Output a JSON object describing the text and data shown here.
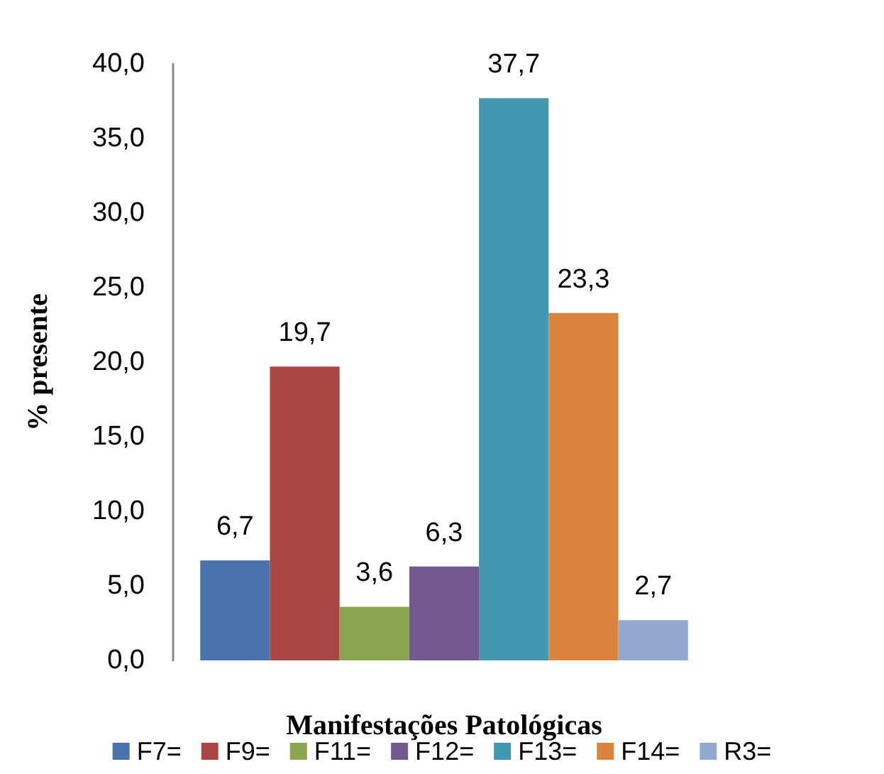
{
  "chart_data": {
    "type": "bar",
    "xlabel": "Manifestações Patológicas",
    "ylabel": "% presente",
    "categories": [
      null
    ],
    "series": [
      {
        "name": "F7=",
        "color": "#4a72aa",
        "values": [
          6.7
        ],
        "value_labels": [
          "6,7"
        ]
      },
      {
        "name": "F9=",
        "color": "#aa4744",
        "values": [
          19.7
        ],
        "value_labels": [
          "19,7"
        ]
      },
      {
        "name": "F11=",
        "color": "#89a54e",
        "values": [
          3.6
        ],
        "value_labels": [
          "3,6"
        ]
      },
      {
        "name": "F12=",
        "color": "#71588f",
        "values": [
          6.3
        ],
        "value_labels": [
          "6,3"
        ]
      },
      {
        "name": "F13=",
        "color": "#4198af",
        "values": [
          37.7
        ],
        "value_labels": [
          "37,7"
        ]
      },
      {
        "name": "F14=",
        "color": "#db843d",
        "values": [
          23.3
        ],
        "value_labels": [
          "23,3"
        ]
      },
      {
        "name": "R3=",
        "color": "#93a9cf",
        "values": [
          2.7
        ],
        "value_labels": [
          "2,7"
        ]
      }
    ],
    "ylim": [
      0,
      40
    ],
    "yticks": [
      {
        "value": 0,
        "label": "0,0"
      },
      {
        "value": 5,
        "label": "5,0"
      },
      {
        "value": 10,
        "label": "10,0"
      },
      {
        "value": 15,
        "label": "15,0"
      },
      {
        "value": 20,
        "label": "20,0"
      },
      {
        "value": 25,
        "label": "25,0"
      },
      {
        "value": 30,
        "label": "30,0"
      },
      {
        "value": 35,
        "label": "35,0"
      },
      {
        "value": 40,
        "label": "40,0"
      }
    ],
    "grid": false,
    "legend": "bottom"
  }
}
